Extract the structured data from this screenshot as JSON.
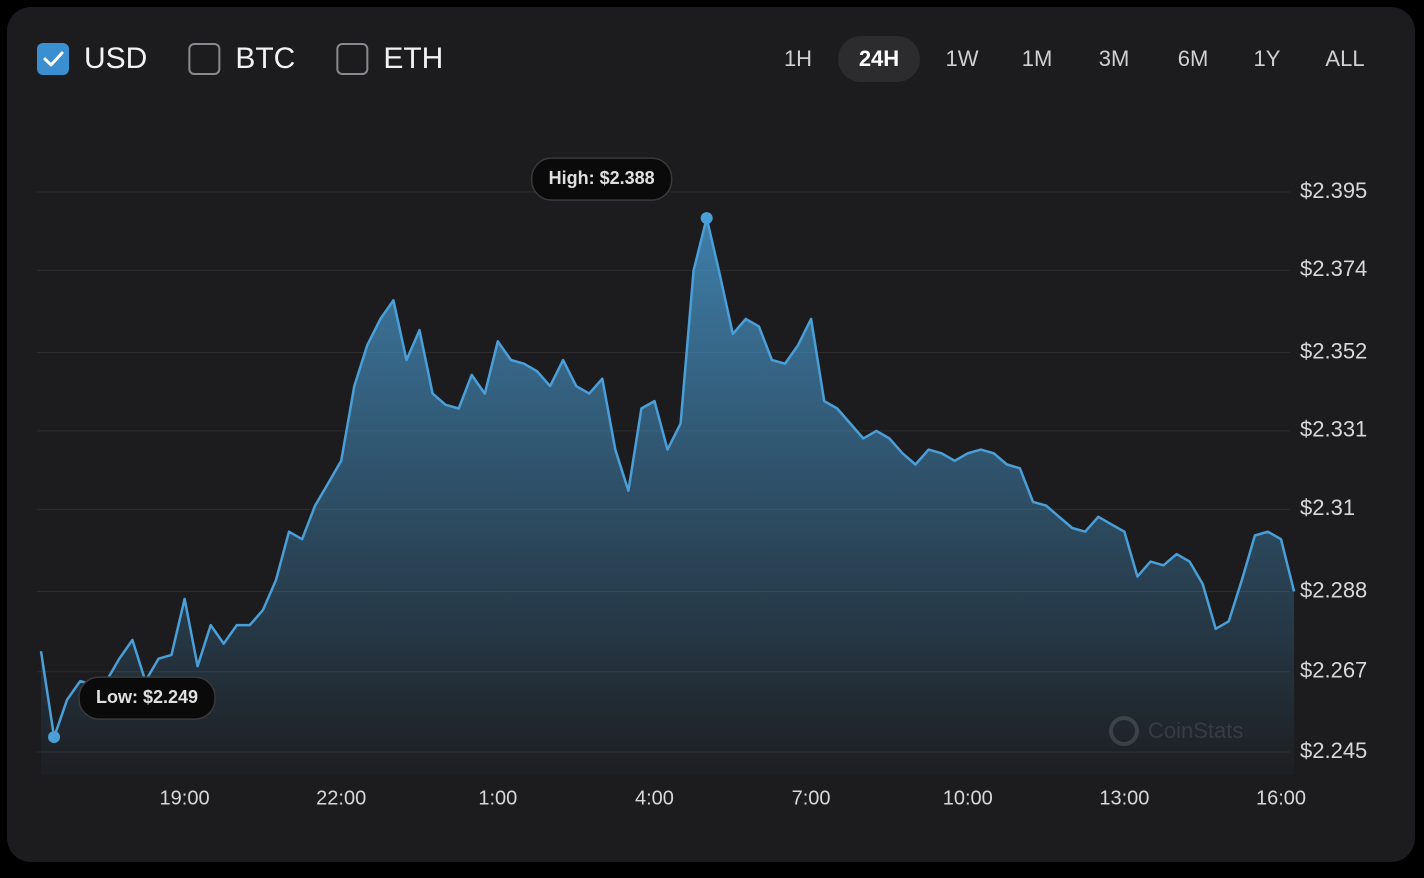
{
  "chart_data": {
    "type": "area-line",
    "currencies": [
      {
        "label": "USD",
        "checked": true
      },
      {
        "label": "BTC",
        "checked": false
      },
      {
        "label": "ETH",
        "checked": false
      }
    ],
    "ranges": [
      "1H",
      "24H",
      "1W",
      "1M",
      "3M",
      "6M",
      "1Y",
      "ALL"
    ],
    "active_range": "24H",
    "watermark": "CoinStats",
    "annotations": {
      "high": "High: $2.388",
      "low": "Low: $2.249"
    },
    "categories": [
      null,
      null,
      null,
      null,
      null,
      null,
      null,
      null,
      null,
      null,
      null,
      "19:00",
      null,
      null,
      null,
      null,
      null,
      null,
      null,
      null,
      null,
      null,
      null,
      "22:00",
      null,
      null,
      null,
      null,
      null,
      null,
      null,
      null,
      null,
      null,
      null,
      "1:00",
      null,
      null,
      null,
      null,
      null,
      null,
      null,
      null,
      null,
      null,
      null,
      "4:00",
      null,
      null,
      null,
      null,
      null,
      null,
      null,
      null,
      null,
      null,
      null,
      "7:00",
      null,
      null,
      null,
      null,
      null,
      null,
      null,
      null,
      null,
      null,
      null,
      "10:00",
      null,
      null,
      null,
      null,
      null,
      null,
      null,
      null,
      null,
      null,
      null,
      "13:00",
      null,
      null,
      null,
      null,
      null,
      null,
      null,
      null,
      null,
      null,
      null,
      "16:00",
      null
    ],
    "series": [
      {
        "color": "#4a9fd8",
        "values": [
          2.272,
          2.249,
          2.259,
          2.264,
          2.263,
          2.264,
          2.27,
          2.275,
          2.264,
          2.27,
          2.271,
          2.286,
          2.268,
          2.279,
          2.274,
          2.279,
          2.279,
          2.283,
          2.291,
          2.304,
          2.302,
          2.311,
          2.317,
          2.323,
          2.343,
          2.354,
          2.361,
          2.366,
          2.35,
          2.358,
          2.341,
          2.338,
          2.337,
          2.346,
          2.341,
          2.355,
          2.35,
          2.349,
          2.347,
          2.343,
          2.35,
          2.343,
          2.341,
          2.345,
          2.326,
          2.315,
          2.337,
          2.339,
          2.326,
          2.333,
          2.374,
          2.388,
          2.373,
          2.357,
          2.361,
          2.359,
          2.35,
          2.349,
          2.354,
          2.361,
          2.339,
          2.337,
          2.333,
          2.329,
          2.331,
          2.329,
          2.325,
          2.322,
          2.326,
          2.325,
          2.323,
          2.325,
          2.326,
          2.325,
          2.322,
          2.321,
          2.312,
          2.311,
          2.308,
          2.305,
          2.304,
          2.308,
          2.306,
          2.304,
          2.292,
          2.296,
          2.295,
          2.298,
          2.296,
          2.29,
          2.278,
          2.28,
          2.291,
          2.303,
          2.304,
          2.302,
          2.288
        ]
      }
    ],
    "ylim": [
      2.245,
      2.395
    ],
    "yticks": [
      {
        "value": 2.245,
        "label": "$2.245"
      },
      {
        "value": 2.2665,
        "label": "$2.267"
      },
      {
        "value": 2.288,
        "label": "$2.288"
      },
      {
        "value": 2.31,
        "label": "$2.31"
      },
      {
        "value": 2.331,
        "label": "$2.331"
      },
      {
        "value": 2.352,
        "label": "$2.352"
      },
      {
        "value": 2.374,
        "label": "$2.374"
      },
      {
        "value": 2.395,
        "label": "$2.395"
      }
    ],
    "grid": true
  }
}
